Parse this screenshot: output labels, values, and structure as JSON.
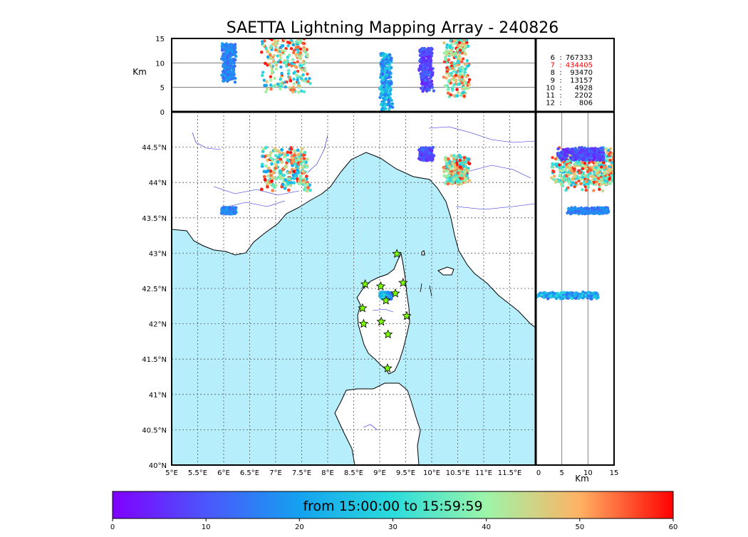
{
  "chart_data": {
    "type": "scatter",
    "title": "SAETTA Lightning Mapping Array - 240826",
    "panels": {
      "map": {
        "xlim": [
          5,
          12
        ],
        "ylim": [
          40,
          45
        ],
        "xticks": [
          "5°E",
          "5.5°E",
          "6°E",
          "6.5°E",
          "7°E",
          "7.5°E",
          "8°E",
          "8.5°E",
          "9°E",
          "9.5°E",
          "10°E",
          "10.5°E",
          "11°E",
          "11.5°E"
        ],
        "yticks": [
          "40°N",
          "40.5°N",
          "41°N",
          "41.5°N",
          "42°N",
          "42.5°N",
          "43°N",
          "43.5°N",
          "44°N",
          "44.5°N"
        ],
        "grid": true
      },
      "altitude_lon": {
        "ylabel": "Km",
        "ylim": [
          0,
          15
        ],
        "yticks": [
          "0",
          "5",
          "10",
          "15"
        ]
      },
      "altitude_lat": {
        "xlabel": "Km",
        "xlim": [
          0,
          15
        ],
        "xticks": [
          "0",
          "5",
          "10",
          "15"
        ]
      }
    },
    "stations": [
      {
        "lon": 9.33,
        "lat": 42.99
      },
      {
        "lon": 8.72,
        "lat": 42.56
      },
      {
        "lon": 9.02,
        "lat": 42.53
      },
      {
        "lon": 9.45,
        "lat": 42.58
      },
      {
        "lon": 9.12,
        "lat": 42.33
      },
      {
        "lon": 9.3,
        "lat": 42.43
      },
      {
        "lon": 8.67,
        "lat": 42.22
      },
      {
        "lon": 9.52,
        "lat": 42.11
      },
      {
        "lon": 8.69,
        "lat": 42.0
      },
      {
        "lon": 9.03,
        "lat": 42.03
      },
      {
        "lon": 9.16,
        "lat": 41.85
      },
      {
        "lon": 9.15,
        "lat": 41.37
      }
    ],
    "source_counts": [
      {
        "label": "6",
        "value": "767333",
        "highlight": false
      },
      {
        "label": "7",
        "value": "434405",
        "highlight": true
      },
      {
        "label": "8",
        "value": "93470",
        "highlight": false
      },
      {
        "label": "9",
        "value": "13157",
        "highlight": false
      },
      {
        "label": "10",
        "value": "4928",
        "highlight": false
      },
      {
        "label": "11",
        "value": "2202",
        "highlight": false
      },
      {
        "label": "12",
        "value": "806",
        "highlight": false
      }
    ],
    "colorbar": {
      "label": "from 15:00:00 to 15:59:59",
      "range": [
        0,
        60
      ],
      "ticks": [
        "0",
        "10",
        "20",
        "30",
        "40",
        "50",
        "60"
      ],
      "colormap": "rainbow"
    },
    "clusters": [
      {
        "lon_min": 6.7,
        "lon_max": 7.7,
        "lat_min": 43.85,
        "lat_max": 44.55,
        "alt_min": 4,
        "alt_max": 15,
        "t_min": 20,
        "t_max": 60
      },
      {
        "lon_min": 10.2,
        "lon_max": 10.75,
        "lat_min": 43.95,
        "lat_max": 44.4,
        "alt_min": 3,
        "alt_max": 15,
        "t_min": 25,
        "t_max": 60
      },
      {
        "lon_min": 9.75,
        "lon_max": 10.05,
        "lat_min": 44.3,
        "lat_max": 44.5,
        "alt_min": 4,
        "alt_max": 13,
        "t_min": 3,
        "t_max": 14
      },
      {
        "lon_min": 5.95,
        "lon_max": 6.25,
        "lat_min": 43.55,
        "lat_max": 43.65,
        "alt_min": 6,
        "alt_max": 14,
        "t_min": 12,
        "t_max": 20
      },
      {
        "lon_min": 9.0,
        "lon_max": 9.25,
        "lat_min": 42.35,
        "lat_max": 42.45,
        "alt_min": 0,
        "alt_max": 12,
        "t_min": 12,
        "t_max": 30
      }
    ]
  }
}
